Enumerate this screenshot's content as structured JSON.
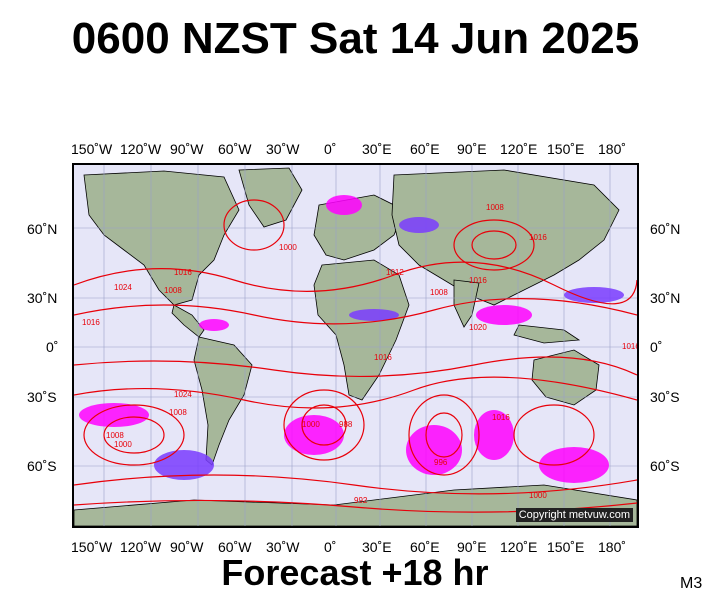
{
  "title": "0600 NZST Sat 14 Jun 2025",
  "footer": "Forecast +18 hr",
  "model_label": "M3",
  "copyright": "Copyright metvuw.com",
  "lon_labels": [
    "150˚W",
    "120˚W",
    "90˚W",
    "60˚W",
    "30˚W",
    "0˚",
    "30˚E",
    "60˚E",
    "90˚E",
    "120˚E",
    "150˚E",
    "180˚"
  ],
  "lat_labels": [
    "60˚N",
    "30˚N",
    "0˚",
    "30˚S",
    "60˚S"
  ],
  "isobar_labels": [
    "1008",
    "1016",
    "1024",
    "1008",
    "1016",
    "1000",
    "1008",
    "1016",
    "1012",
    "1016",
    "1008",
    "1016",
    "1016",
    "1020",
    "1008",
    "1024",
    "1000",
    "988",
    "996",
    "1000",
    "992",
    "1016",
    "1000"
  ],
  "colors": {
    "isobar": "#e8000a",
    "rain_heavy": "#ff00ff",
    "rain_medium": "#7a3cff",
    "land": "#a6b79a",
    "ocean": "#e6e6f8"
  }
}
